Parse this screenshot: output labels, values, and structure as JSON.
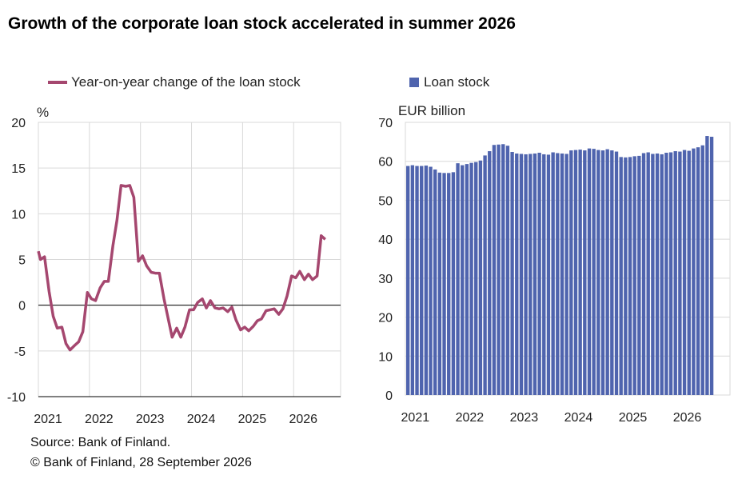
{
  "title": "Growth of the corporate loan stock accelerated in summer 2026",
  "footer": {
    "source": "Source: Bank of Finland.",
    "copyright": "© Bank of Finland, 28 September 2026"
  },
  "colors": {
    "line": "#a5476f",
    "bar": "#4f64ae",
    "grid": "#d9d9d9",
    "axis": "#000000"
  },
  "chart_data": [
    {
      "type": "line",
      "legend": "Year-on-year change of the loan stock",
      "ylabel": "%",
      "ylim": [
        -10,
        20
      ],
      "yticks": [
        -10,
        -5,
        0,
        5,
        10,
        15,
        20
      ],
      "xlim": [
        2021.0,
        2026.92
      ],
      "xticks": [
        2021,
        2022,
        2023,
        2024,
        2025,
        2026
      ],
      "grid": true,
      "series": [
        {
          "values": [
            [
              2021.0,
              5.9
            ],
            [
              2021.04,
              5.0
            ],
            [
              2021.12,
              5.3
            ],
            [
              2021.21,
              1.5
            ],
            [
              2021.29,
              -1.2
            ],
            [
              2021.37,
              -2.5
            ],
            [
              2021.46,
              -2.4
            ],
            [
              2021.54,
              -4.2
            ],
            [
              2021.62,
              -4.9
            ],
            [
              2021.71,
              -4.4
            ],
            [
              2021.79,
              -4.0
            ],
            [
              2021.87,
              -2.9
            ],
            [
              2021.96,
              1.4
            ],
            [
              2022.04,
              0.7
            ],
            [
              2022.12,
              0.5
            ],
            [
              2022.21,
              1.9
            ],
            [
              2022.29,
              2.6
            ],
            [
              2022.37,
              2.6
            ],
            [
              2022.46,
              6.5
            ],
            [
              2022.54,
              9.3
            ],
            [
              2022.62,
              13.1
            ],
            [
              2022.71,
              13.0
            ],
            [
              2022.79,
              13.1
            ],
            [
              2022.87,
              11.8
            ],
            [
              2022.96,
              4.8
            ],
            [
              2023.04,
              5.4
            ],
            [
              2023.12,
              4.3
            ],
            [
              2023.21,
              3.6
            ],
            [
              2023.29,
              3.5
            ],
            [
              2023.37,
              3.5
            ],
            [
              2023.46,
              0.7
            ],
            [
              2023.54,
              -1.4
            ],
            [
              2023.62,
              -3.5
            ],
            [
              2023.71,
              -2.5
            ],
            [
              2023.79,
              -3.5
            ],
            [
              2023.87,
              -2.4
            ],
            [
              2023.96,
              -0.5
            ],
            [
              2024.04,
              -0.5
            ],
            [
              2024.12,
              0.3
            ],
            [
              2024.21,
              0.7
            ],
            [
              2024.29,
              -0.3
            ],
            [
              2024.37,
              0.5
            ],
            [
              2024.46,
              -0.3
            ],
            [
              2024.54,
              -0.4
            ],
            [
              2024.62,
              -0.3
            ],
            [
              2024.71,
              -0.7
            ],
            [
              2024.79,
              -0.2
            ],
            [
              2024.87,
              -1.6
            ],
            [
              2024.96,
              -2.7
            ],
            [
              2025.04,
              -2.4
            ],
            [
              2025.12,
              -2.8
            ],
            [
              2025.21,
              -2.3
            ],
            [
              2025.29,
              -1.7
            ],
            [
              2025.37,
              -1.5
            ],
            [
              2025.46,
              -0.6
            ],
            [
              2025.54,
              -0.5
            ],
            [
              2025.62,
              -0.4
            ],
            [
              2025.71,
              -1.0
            ],
            [
              2025.79,
              -0.4
            ],
            [
              2025.87,
              1.0
            ],
            [
              2025.96,
              3.2
            ],
            [
              2026.04,
              3.0
            ],
            [
              2026.12,
              3.7
            ],
            [
              2026.21,
              2.8
            ],
            [
              2026.29,
              3.4
            ],
            [
              2026.37,
              2.8
            ],
            [
              2026.46,
              3.2
            ],
            [
              2026.54,
              7.6
            ],
            [
              2026.62,
              7.2
            ]
          ]
        }
      ]
    },
    {
      "type": "bar",
      "legend": "Loan stock",
      "ylabel": "EUR billion",
      "ylim": [
        0,
        70
      ],
      "yticks": [
        0,
        10,
        20,
        30,
        40,
        50,
        60,
        70
      ],
      "xticks": [
        2021,
        2022,
        2023,
        2024,
        2025,
        2026
      ],
      "start": "2021-01",
      "grid": true,
      "values": [
        58.8,
        59.0,
        58.8,
        58.8,
        58.9,
        58.6,
        57.9,
        57.1,
        57.0,
        57.0,
        57.2,
        59.5,
        59.0,
        59.3,
        59.6,
        59.8,
        60.2,
        61.5,
        62.6,
        64.2,
        64.3,
        64.4,
        64.0,
        62.4,
        62.0,
        61.9,
        61.8,
        61.9,
        62.0,
        62.2,
        61.8,
        61.7,
        62.3,
        62.1,
        62.0,
        61.9,
        62.8,
        62.9,
        63.0,
        62.8,
        63.3,
        63.2,
        62.9,
        62.8,
        63.1,
        62.8,
        62.5,
        61.1,
        61.0,
        61.1,
        61.3,
        61.4,
        62.1,
        62.3,
        61.9,
        62.0,
        61.8,
        62.2,
        62.3,
        62.6,
        62.5,
        62.9,
        62.7,
        63.3,
        63.6,
        64.1,
        66.5,
        66.3
      ]
    }
  ]
}
